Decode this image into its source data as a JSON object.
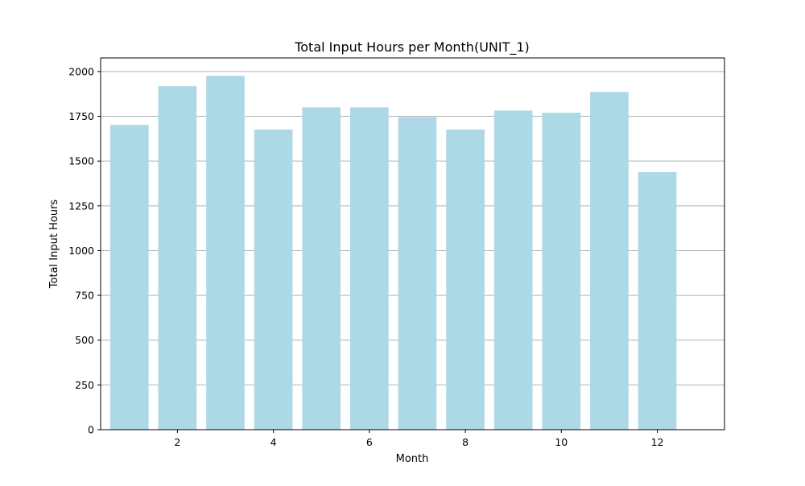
{
  "chart_data": {
    "type": "bar",
    "title": "Total Input Hours per Month(UNIT_1)",
    "xlabel": "Month",
    "ylabel": "Total Input Hours",
    "x": [
      1,
      2,
      3,
      4,
      5,
      6,
      7,
      8,
      9,
      10,
      11,
      12
    ],
    "values": [
      1702,
      1918,
      1976,
      1676,
      1800,
      1800,
      1746,
      1676,
      1782,
      1770,
      1886,
      1438
    ],
    "xlim": [
      0.4,
      13.4
    ],
    "ylim": [
      0,
      2076
    ],
    "xticks": [
      2,
      4,
      6,
      8,
      10,
      12
    ],
    "yticks": [
      0,
      250,
      500,
      750,
      1000,
      1250,
      1500,
      1750,
      2000
    ],
    "grid": "y-major",
    "legend": "none",
    "bar_color": "#add8e6",
    "grid_color": "#b0b0b0"
  }
}
